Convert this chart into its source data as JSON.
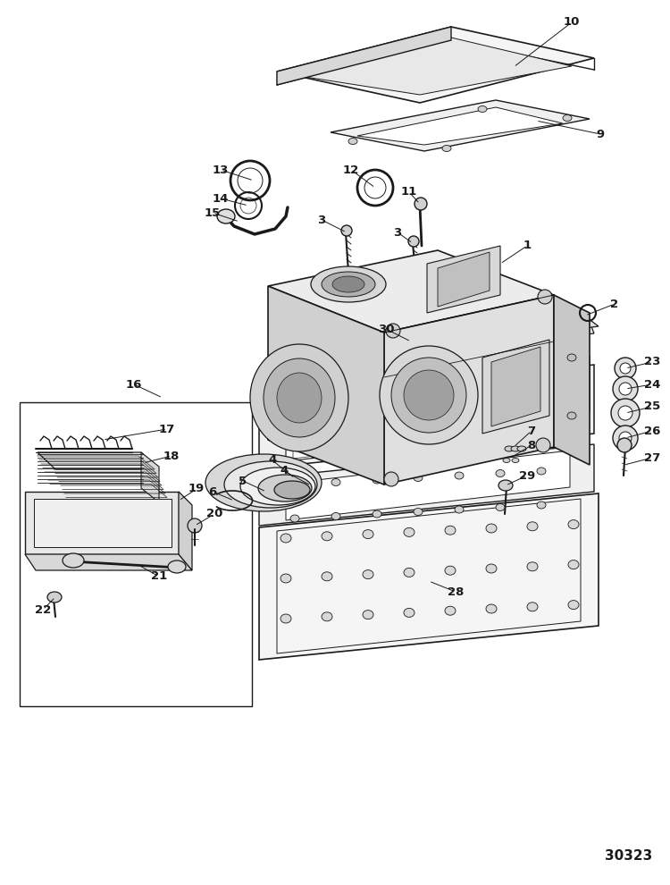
{
  "diagram_id": "30323",
  "background_color": "#ffffff",
  "line_color": "#1a1a1a",
  "figsize": [
    7.5,
    9.9
  ],
  "dpi": 100
}
